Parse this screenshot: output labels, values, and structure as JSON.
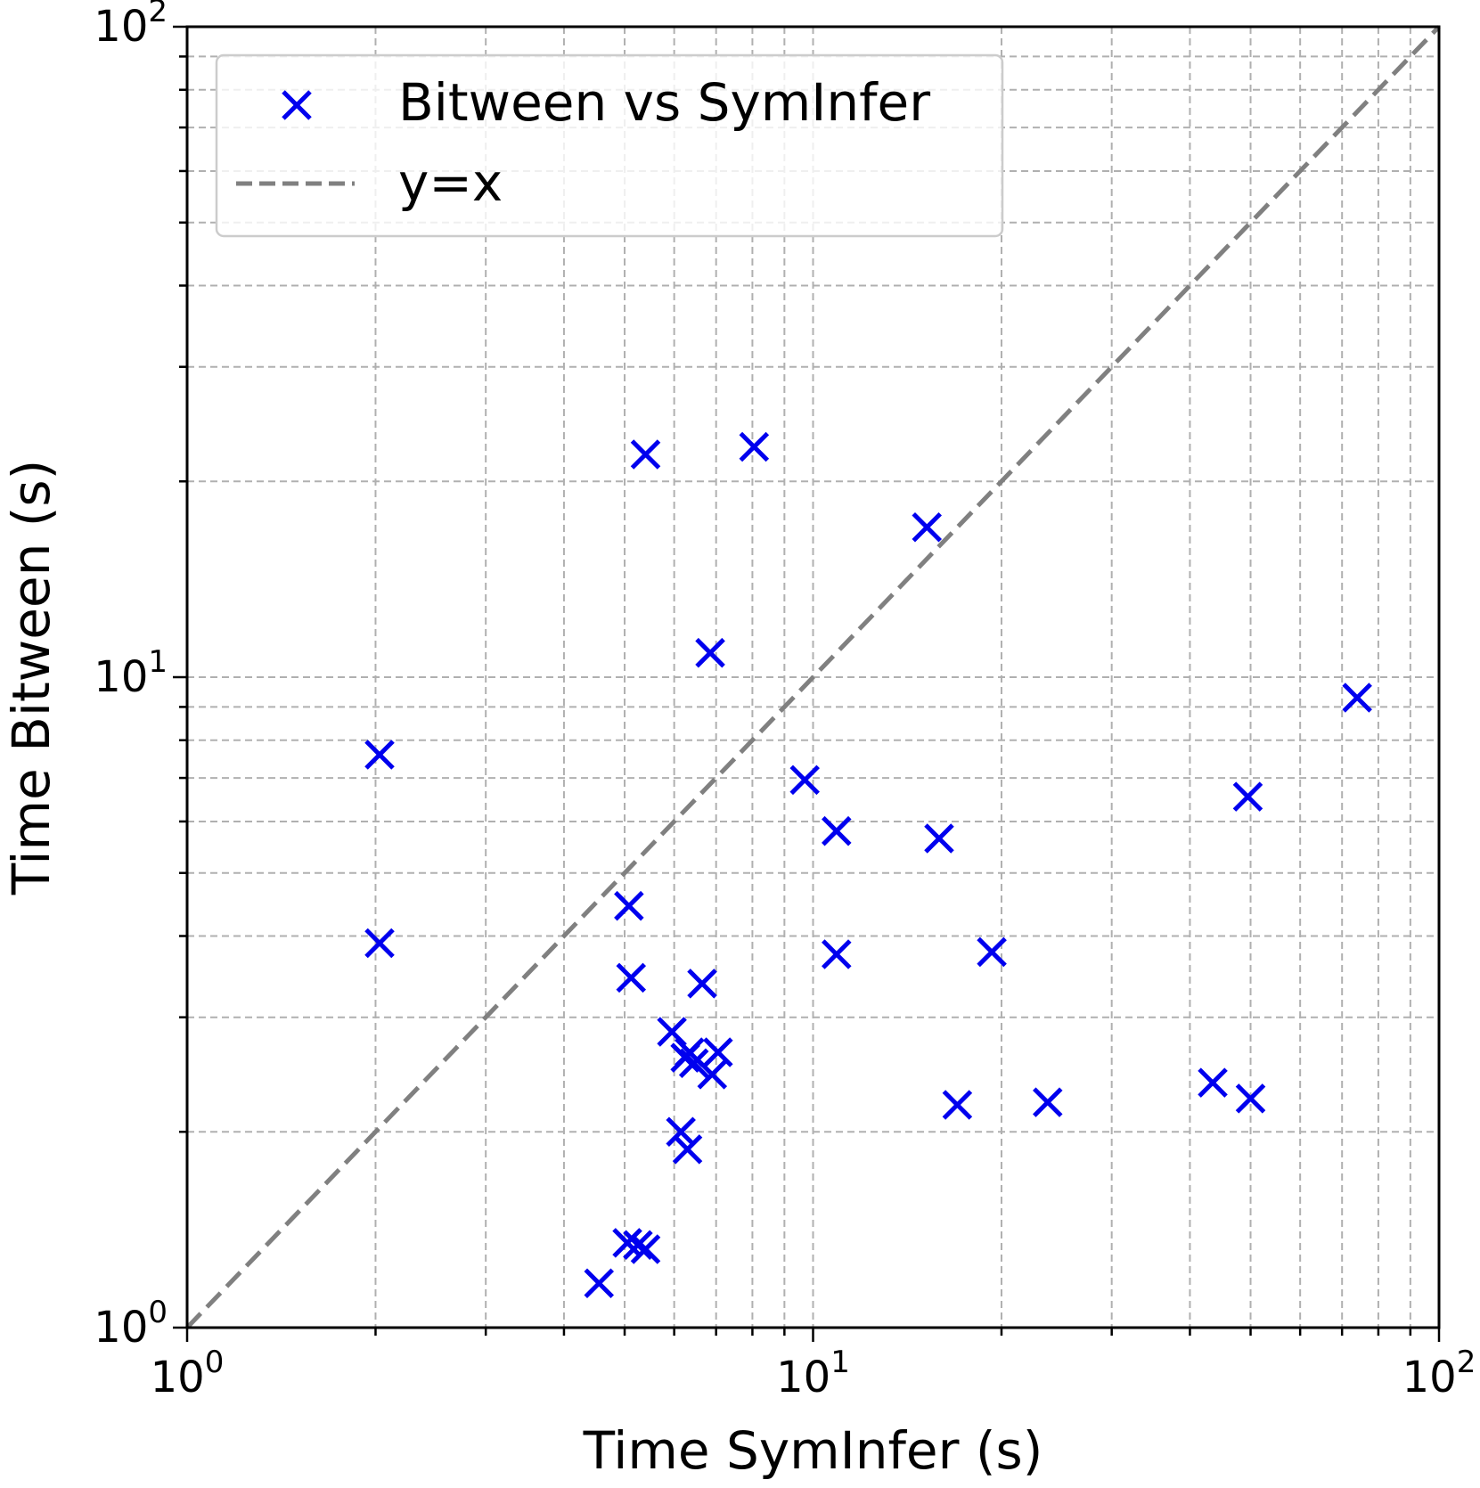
{
  "chart_data": {
    "type": "scatter",
    "xlabel": "Time SymInfer (s)",
    "ylabel": "Time Bitween (s)",
    "xscale": "log",
    "yscale": "log",
    "xlim": [
      1,
      100
    ],
    "ylim": [
      1,
      100
    ],
    "grid": true,
    "legend_position": "top-left",
    "x_ticks": [
      {
        "value": 1,
        "base": "10",
        "exp": "0"
      },
      {
        "value": 10,
        "base": "10",
        "exp": "1"
      },
      {
        "value": 100,
        "base": "10",
        "exp": "2"
      }
    ],
    "y_ticks": [
      {
        "value": 1,
        "base": "10",
        "exp": "0"
      },
      {
        "value": 10,
        "base": "10",
        "exp": "1"
      },
      {
        "value": 100,
        "base": "10",
        "exp": "2"
      }
    ],
    "series": [
      {
        "name": "Bitween vs SymInfer",
        "marker": "x",
        "color": "#0000ee",
        "points": [
          {
            "x": 2.03,
            "y": 7.6
          },
          {
            "x": 2.03,
            "y": 3.9
          },
          {
            "x": 4.55,
            "y": 1.17
          },
          {
            "x": 5.05,
            "y": 1.35
          },
          {
            "x": 5.25,
            "y": 1.34
          },
          {
            "x": 5.4,
            "y": 1.32
          },
          {
            "x": 5.08,
            "y": 4.45
          },
          {
            "x": 5.12,
            "y": 3.45
          },
          {
            "x": 5.4,
            "y": 22.0
          },
          {
            "x": 5.95,
            "y": 2.85
          },
          {
            "x": 6.15,
            "y": 2.0
          },
          {
            "x": 6.3,
            "y": 1.88
          },
          {
            "x": 6.25,
            "y": 2.6
          },
          {
            "x": 6.35,
            "y": 2.65
          },
          {
            "x": 6.45,
            "y": 2.55
          },
          {
            "x": 6.65,
            "y": 3.38
          },
          {
            "x": 6.85,
            "y": 10.9
          },
          {
            "x": 6.9,
            "y": 2.45
          },
          {
            "x": 7.05,
            "y": 2.65
          },
          {
            "x": 8.05,
            "y": 22.6
          },
          {
            "x": 9.7,
            "y": 6.95
          },
          {
            "x": 10.9,
            "y": 5.8
          },
          {
            "x": 10.9,
            "y": 3.75
          },
          {
            "x": 15.2,
            "y": 17.0
          },
          {
            "x": 15.9,
            "y": 5.65
          },
          {
            "x": 17.0,
            "y": 2.2
          },
          {
            "x": 19.3,
            "y": 3.78
          },
          {
            "x": 23.7,
            "y": 2.22
          },
          {
            "x": 43.5,
            "y": 2.38
          },
          {
            "x": 49.5,
            "y": 6.55
          },
          {
            "x": 50.0,
            "y": 2.25
          },
          {
            "x": 74.0,
            "y": 9.3
          }
        ]
      },
      {
        "name": "y=x",
        "style": "dashed",
        "color": "#808080",
        "points": [
          {
            "x": 1,
            "y": 1
          },
          {
            "x": 100,
            "y": 100
          }
        ]
      }
    ]
  }
}
